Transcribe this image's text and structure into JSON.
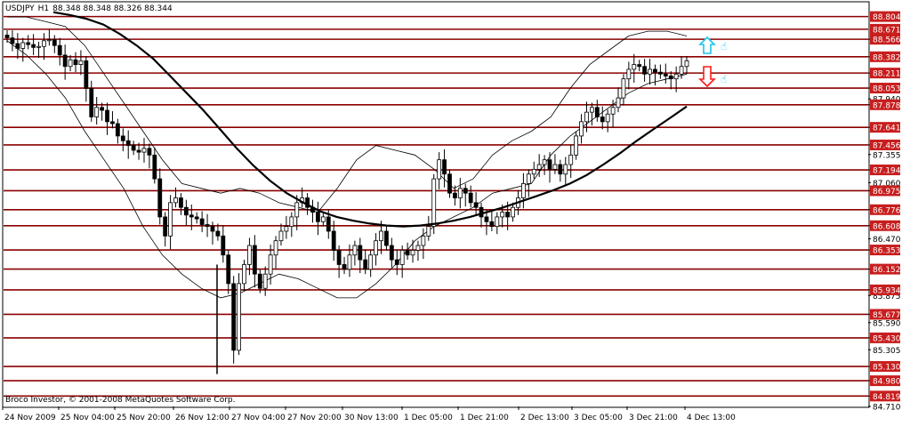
{
  "header": {
    "symbol": "USDJPY",
    "timeframe": "H1",
    "ohlc": "88.348 88.348 88.326 88.344"
  },
  "copyright": "Broco Investor, © 2001-2008 MetaQuotes Software Corp.",
  "chart_data": {
    "type": "candlestick",
    "ylim": [
      84.71,
      88.95
    ],
    "y_ticks": [
      88.566,
      88.382,
      88.211,
      88.053,
      87.94,
      87.878,
      87.641,
      87.456,
      87.355,
      87.194,
      87.06,
      86.975,
      86.776,
      86.608,
      86.47,
      86.353,
      86.152,
      85.934,
      85.875,
      85.677,
      85.59,
      85.43,
      85.305,
      85.13,
      84.98,
      84.819,
      84.71
    ],
    "x_labels": [
      "24 Nov 2009",
      "25 Nov 04:00",
      "25 Nov 20:00",
      "26 Nov 12:00",
      "27 Nov 04:00",
      "27 Nov 20:00",
      "30 Nov 13:00",
      "1 Dec 05:00",
      "1 Dec 21:00",
      "2 Dec 13:00",
      "3 Dec 05:00",
      "3 Dec 21:00",
      "4 Dec 13:00"
    ],
    "levels": [
      88.804,
      88.671,
      88.566,
      88.382,
      88.211,
      88.053,
      87.878,
      87.641,
      87.456,
      87.194,
      86.975,
      86.776,
      86.608,
      86.353,
      86.152,
      85.934,
      85.677,
      85.43,
      85.13,
      84.98,
      84.819
    ],
    "close_series": [
      88.58,
      88.52,
      88.47,
      88.53,
      88.51,
      88.48,
      88.49,
      88.55,
      88.56,
      88.5,
      88.4,
      88.28,
      88.35,
      88.3,
      88.34,
      88.05,
      87.75,
      87.85,
      87.82,
      87.7,
      87.68,
      87.55,
      87.5,
      87.45,
      87.4,
      87.38,
      87.42,
      87.35,
      87.1,
      86.7,
      86.5,
      86.85,
      86.9,
      86.8,
      86.72,
      86.7,
      86.68,
      86.62,
      86.6,
      86.55,
      86.5,
      86.3,
      86.0,
      85.3,
      86.0,
      86.2,
      86.4,
      86.1,
      85.95,
      86.1,
      86.3,
      86.45,
      86.55,
      86.6,
      86.7,
      86.85,
      86.9,
      86.8,
      86.75,
      86.65,
      86.7,
      86.55,
      86.35,
      86.2,
      86.15,
      86.3,
      86.4,
      86.25,
      86.15,
      86.3,
      86.45,
      86.55,
      86.4,
      86.25,
      86.2,
      86.35,
      86.3,
      86.35,
      86.4,
      86.5,
      86.6,
      87.1,
      87.3,
      87.15,
      86.95,
      86.9,
      87.0,
      86.95,
      86.85,
      86.8,
      86.7,
      86.65,
      86.6,
      86.7,
      86.75,
      86.7,
      86.8,
      86.9,
      87.05,
      87.15,
      87.2,
      87.25,
      87.3,
      87.2,
      87.25,
      87.15,
      87.25,
      87.35,
      87.55,
      87.7,
      87.8,
      87.85,
      87.75,
      87.7,
      87.78,
      87.85,
      87.95,
      88.15,
      88.25,
      88.3,
      88.28,
      88.2,
      88.25,
      88.22,
      88.2,
      88.18,
      88.15,
      88.2,
      88.28,
      88.34
    ],
    "ma_series": [
      88.85,
      88.82,
      88.78,
      88.72,
      88.62,
      88.5,
      88.36,
      88.18,
      88.0,
      87.82,
      87.62,
      87.42,
      87.24,
      87.08,
      86.95,
      86.85,
      86.76,
      86.7,
      86.66,
      86.63,
      86.61,
      86.6,
      86.61,
      86.63,
      86.66,
      86.7,
      86.75,
      86.8,
      86.86,
      86.92,
      86.98,
      87.05,
      87.14,
      87.25,
      87.37,
      87.5,
      87.62,
      87.74,
      87.86
    ],
    "bands_upper": [
      88.8,
      88.8,
      88.75,
      88.7,
      88.5,
      88.2,
      87.9,
      87.6,
      87.3,
      87.05,
      87.0,
      86.95,
      87.0,
      86.95,
      86.85,
      86.8,
      86.75,
      87.0,
      87.3,
      87.45,
      87.4,
      87.35,
      87.2,
      87.0,
      87.1,
      87.35,
      87.5,
      87.6,
      87.75,
      88.05,
      88.3,
      88.45,
      88.6,
      88.65,
      88.65,
      88.6
    ],
    "bands_lower": [
      88.55,
      88.4,
      88.2,
      87.95,
      87.6,
      87.3,
      87.0,
      86.6,
      86.3,
      86.1,
      85.95,
      85.85,
      85.9,
      86.0,
      86.1,
      86.05,
      85.95,
      85.85,
      85.85,
      86.0,
      86.2,
      86.45,
      86.6,
      86.7,
      86.8,
      86.95,
      87.0,
      87.05,
      87.35,
      87.55,
      87.7,
      87.85,
      88.0,
      88.1,
      88.15,
      88.2
    ],
    "arrows": [
      {
        "direction": "up",
        "color": "#19c6f0"
      },
      {
        "direction": "down",
        "color": "#ff1a1a"
      }
    ],
    "colors": {
      "level_line": "#8b0000",
      "level_label_bg": "#c81e1e",
      "candle": "#000000",
      "frame": "#000000"
    }
  }
}
